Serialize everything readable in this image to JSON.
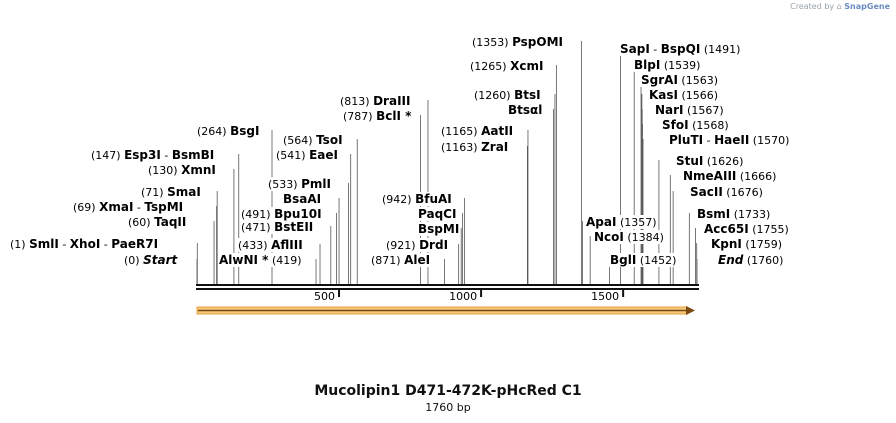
{
  "watermark": {
    "prefix": "Created by",
    "brand": "SnapGene"
  },
  "map": {
    "title": "Mucolipin1 D471-472K-pHcRed C1",
    "length_label": "1760 bp",
    "total_bp": 1760,
    "ruler_ticks": [
      {
        "bp": 500,
        "label": "500"
      },
      {
        "bp": 1000,
        "label": "1000"
      },
      {
        "bp": 1500,
        "label": "1500"
      }
    ],
    "feature_arrow": {
      "start": 1,
      "end": 1760,
      "direction": "forward",
      "color": "#e8a040"
    },
    "sites": [
      {
        "pos": "(1)",
        "bp": 1,
        "names": [
          "SmlI",
          "XhoI",
          "PaeR7I"
        ]
      },
      {
        "pos": "(0)",
        "bp": 0,
        "names": [
          "Start"
        ],
        "italic": true
      },
      {
        "pos": "(60)",
        "bp": 60,
        "names": [
          "TaqII"
        ]
      },
      {
        "pos": "(69)",
        "bp": 69,
        "names": [
          "XmaI",
          "TspMI"
        ]
      },
      {
        "pos": "(71)",
        "bp": 71,
        "names": [
          "SmaI"
        ]
      },
      {
        "pos": "(130)",
        "bp": 130,
        "names": [
          "XmnI"
        ]
      },
      {
        "pos": "(147)",
        "bp": 147,
        "names": [
          "Esp3I",
          "BsmBI"
        ]
      },
      {
        "pos": "(264)",
        "bp": 264,
        "names": [
          "BsgI"
        ]
      },
      {
        "pos": "(419)",
        "bp": 419,
        "names": [
          "AlwNI *"
        ],
        "pos_after": true
      },
      {
        "pos": "(433)",
        "bp": 433,
        "names": [
          "AflIII"
        ]
      },
      {
        "pos": "(471)",
        "bp": 471,
        "names": [
          "BstEII"
        ]
      },
      {
        "pos": "(491)",
        "bp": 491,
        "names": [
          "Bpu10I"
        ]
      },
      {
        "pos": "",
        "bp": 500,
        "names": [
          "BsaAI"
        ]
      },
      {
        "pos": "(533)",
        "bp": 533,
        "names": [
          "PmlI"
        ]
      },
      {
        "pos": "(541)",
        "bp": 541,
        "names": [
          "EaeI"
        ]
      },
      {
        "pos": "(564)",
        "bp": 564,
        "names": [
          "TsoI"
        ]
      },
      {
        "pos": "(787)",
        "bp": 787,
        "names": [
          "BclI *"
        ]
      },
      {
        "pos": "(813)",
        "bp": 813,
        "names": [
          "DraIII"
        ]
      },
      {
        "pos": "(871)",
        "bp": 871,
        "names": [
          "AleI"
        ]
      },
      {
        "pos": "(921)",
        "bp": 921,
        "names": [
          "DrdI"
        ]
      },
      {
        "pos": "",
        "bp": 930,
        "names": [
          "BspMI"
        ]
      },
      {
        "pos": "",
        "bp": 935,
        "names": [
          "PaqCI"
        ]
      },
      {
        "pos": "(942)",
        "bp": 942,
        "names": [
          "BfuAI"
        ]
      },
      {
        "pos": "(1163)",
        "bp": 1163,
        "names": [
          "ZraI"
        ]
      },
      {
        "pos": "(1165)",
        "bp": 1165,
        "names": [
          "AatII"
        ]
      },
      {
        "pos": "",
        "bp": 1255,
        "names": [
          "Btsαl"
        ]
      },
      {
        "pos": "(1260)",
        "bp": 1260,
        "names": [
          "BtsI"
        ]
      },
      {
        "pos": "(1265)",
        "bp": 1265,
        "names": [
          "XcmI"
        ]
      },
      {
        "pos": "(1353)",
        "bp": 1353,
        "names": [
          "PspOMI"
        ]
      },
      {
        "pos": "(1357)",
        "bp": 1357,
        "names": [
          "ApaI"
        ],
        "pos_after": true
      },
      {
        "pos": "(1384)",
        "bp": 1384,
        "names": [
          "NcoI"
        ],
        "pos_after": true
      },
      {
        "pos": "(1452)",
        "bp": 1452,
        "names": [
          "BglI"
        ],
        "pos_after": true
      },
      {
        "pos": "(1491)",
        "bp": 1491,
        "names": [
          "SapI",
          "BspQI"
        ],
        "pos_after": true
      },
      {
        "pos": "(1539)",
        "bp": 1539,
        "names": [
          "BlpI"
        ],
        "pos_after": true
      },
      {
        "pos": "(1563)",
        "bp": 1563,
        "names": [
          "SgrAI"
        ],
        "pos_after": true
      },
      {
        "pos": "(1566)",
        "bp": 1566,
        "names": [
          "KasI"
        ],
        "pos_after": true
      },
      {
        "pos": "(1567)",
        "bp": 1567,
        "names": [
          "NarI"
        ],
        "pos_after": true
      },
      {
        "pos": "(1568)",
        "bp": 1568,
        "names": [
          "SfoI"
        ],
        "pos_after": true
      },
      {
        "pos": "(1570)",
        "bp": 1570,
        "names": [
          "PluTI",
          "HaeII"
        ],
        "pos_after": true
      },
      {
        "pos": "(1626)",
        "bp": 1626,
        "names": [
          "StuI"
        ],
        "pos_after": true
      },
      {
        "pos": "(1666)",
        "bp": 1666,
        "names": [
          "NmeAIII"
        ],
        "pos_after": true
      },
      {
        "pos": "(1676)",
        "bp": 1676,
        "names": [
          "SacII"
        ],
        "pos_after": true
      },
      {
        "pos": "(1733)",
        "bp": 1733,
        "names": [
          "BsmI"
        ],
        "pos_after": true
      },
      {
        "pos": "(1755)",
        "bp": 1755,
        "names": [
          "Acc65I"
        ],
        "pos_after": true
      },
      {
        "pos": "(1759)",
        "bp": 1759,
        "names": [
          "KpnI"
        ],
        "pos_after": true
      },
      {
        "pos": "(1760)",
        "bp": 1760,
        "names": [
          "End"
        ],
        "pos_after": true,
        "italic": true
      }
    ]
  }
}
